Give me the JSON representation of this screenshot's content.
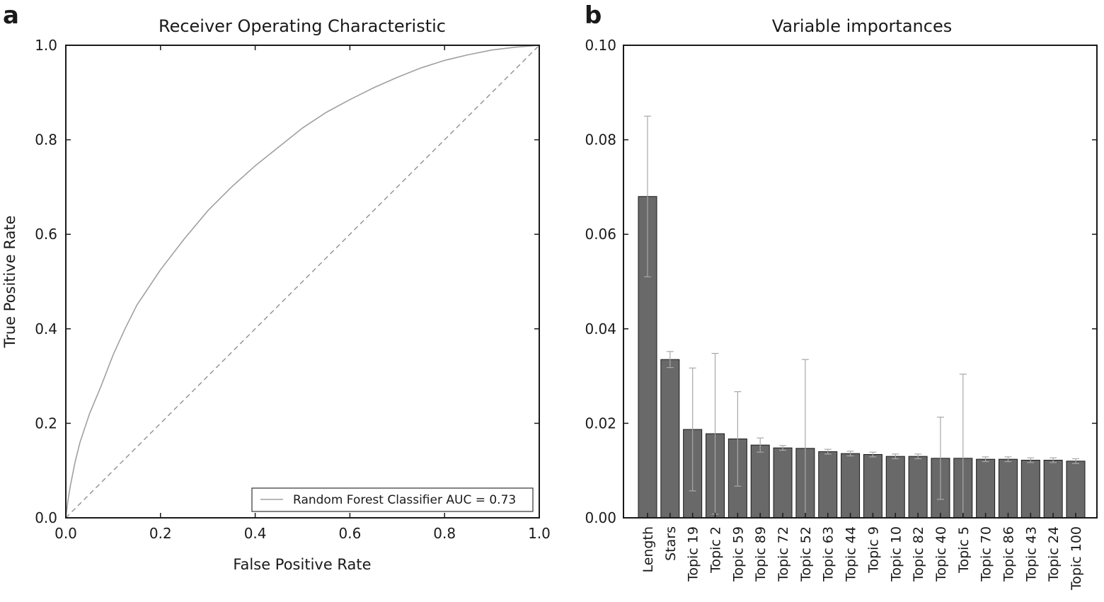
{
  "chart_data": [
    {
      "panel_label": "a",
      "type": "line",
      "title": "Receiver Operating Characteristic",
      "xlabel": "False Positive Rate",
      "ylabel": "True Positive Rate",
      "xlim": [
        0.0,
        1.0
      ],
      "ylim": [
        0.0,
        1.0
      ],
      "xticks": [
        "0.0",
        "0.2",
        "0.4",
        "0.6",
        "0.8",
        "1.0"
      ],
      "yticks": [
        "0.0",
        "0.2",
        "0.4",
        "0.6",
        "0.8",
        "1.0"
      ],
      "grid": false,
      "legend_position": "bottom-right",
      "series": [
        {
          "name": "Random Forest Classifier AUC = 0.73",
          "color": "#a0a0a0",
          "style": "solid",
          "x": [
            0.0,
            0.005,
            0.01,
            0.02,
            0.03,
            0.05,
            0.075,
            0.1,
            0.125,
            0.15,
            0.2,
            0.25,
            0.3,
            0.35,
            0.4,
            0.45,
            0.5,
            0.55,
            0.6,
            0.65,
            0.7,
            0.75,
            0.8,
            0.85,
            0.9,
            0.95,
            1.0
          ],
          "y": [
            0.0,
            0.04,
            0.07,
            0.12,
            0.16,
            0.22,
            0.28,
            0.345,
            0.4,
            0.45,
            0.525,
            0.59,
            0.65,
            0.7,
            0.745,
            0.785,
            0.825,
            0.858,
            0.885,
            0.91,
            0.932,
            0.952,
            0.968,
            0.98,
            0.99,
            0.996,
            1.0
          ]
        },
        {
          "name": "",
          "color": "#909090",
          "style": "dashed",
          "x": [
            0.0,
            1.0
          ],
          "y": [
            0.0,
            1.0
          ]
        }
      ]
    },
    {
      "panel_label": "b",
      "type": "bar",
      "title": "Variable importances",
      "xlabel": "",
      "ylabel": "",
      "ylim": [
        0.0,
        0.1
      ],
      "yticks": [
        "0.00",
        "0.02",
        "0.04",
        "0.06",
        "0.08",
        "0.10"
      ],
      "grid": false,
      "bar_color": "#696969",
      "error_color": "#a8a8a8",
      "categories": [
        "Length",
        "Stars",
        "Topic 19",
        "Topic 2",
        "Topic 59",
        "Topic 89",
        "Topic 72",
        "Topic 52",
        "Topic 63",
        "Topic 44",
        "Topic 9",
        "Topic 10",
        "Topic 82",
        "Topic 40",
        "Topic 5",
        "Topic 70",
        "Topic 86",
        "Topic 43",
        "Topic 24",
        "Topic 100"
      ],
      "values": [
        0.068,
        0.0335,
        0.0187,
        0.0178,
        0.0167,
        0.0154,
        0.0148,
        0.0147,
        0.014,
        0.0136,
        0.0134,
        0.013,
        0.013,
        0.0126,
        0.0126,
        0.0124,
        0.0124,
        0.0122,
        0.0122,
        0.012
      ],
      "errors": [
        0.017,
        0.0017,
        0.013,
        0.017,
        0.01,
        0.0015,
        0.0005,
        0.0188,
        0.0005,
        0.0005,
        0.0005,
        0.0005,
        0.0005,
        0.0087,
        0.0178,
        0.0005,
        0.0005,
        0.0005,
        0.0005,
        0.0005
      ]
    }
  ]
}
